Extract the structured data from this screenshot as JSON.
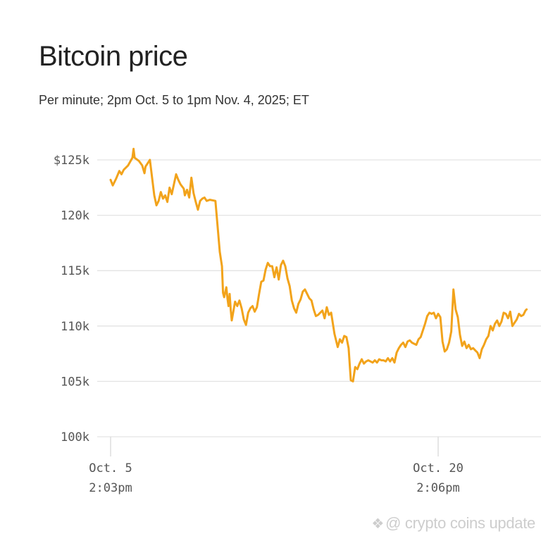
{
  "chart_data": {
    "type": "line",
    "title": "Bitcoin price",
    "subtitle": "Per minute; 2pm Oct. 5 to 1pm Nov. 4, 2025; ET",
    "ylim": [
      100000,
      125000
    ],
    "y_ticks": [
      {
        "value": 125000,
        "label": "$125k"
      },
      {
        "value": 120000,
        "label": "120k"
      },
      {
        "value": 115000,
        "label": "115k"
      },
      {
        "value": 110000,
        "label": "110k"
      },
      {
        "value": 105000,
        "label": "105k"
      },
      {
        "value": 100000,
        "label": "100k"
      }
    ],
    "x_ticks": [
      {
        "day": 0,
        "line1": "Oct. 5",
        "line2": "2:03pm"
      },
      {
        "day": 15,
        "line1": "Oct. 20",
        "line2": "2:06pm"
      }
    ],
    "x_unit": "days since Oct. 5 2:03pm ET",
    "series": [
      {
        "name": "Bitcoin price (USD)",
        "color": "#f2a31b",
        "points": [
          [
            0.0,
            123200
          ],
          [
            0.1,
            122700
          ],
          [
            0.25,
            123300
          ],
          [
            0.4,
            124000
          ],
          [
            0.5,
            123700
          ],
          [
            0.6,
            124100
          ],
          [
            0.8,
            124500
          ],
          [
            1.0,
            125200
          ],
          [
            1.05,
            126000
          ],
          [
            1.1,
            125200
          ],
          [
            1.3,
            124900
          ],
          [
            1.45,
            124500
          ],
          [
            1.55,
            123800
          ],
          [
            1.6,
            124400
          ],
          [
            1.8,
            125000
          ],
          [
            1.9,
            123400
          ],
          [
            2.0,
            121800
          ],
          [
            2.1,
            120900
          ],
          [
            2.2,
            121300
          ],
          [
            2.3,
            122100
          ],
          [
            2.4,
            121500
          ],
          [
            2.5,
            121800
          ],
          [
            2.6,
            121200
          ],
          [
            2.7,
            122500
          ],
          [
            2.8,
            121900
          ],
          [
            3.0,
            123700
          ],
          [
            3.1,
            123200
          ],
          [
            3.2,
            122800
          ],
          [
            3.35,
            122400
          ],
          [
            3.4,
            121800
          ],
          [
            3.5,
            122300
          ],
          [
            3.6,
            121600
          ],
          [
            3.7,
            123400
          ],
          [
            3.8,
            122000
          ],
          [
            3.9,
            121200
          ],
          [
            4.0,
            120500
          ],
          [
            4.1,
            121300
          ],
          [
            4.2,
            121500
          ],
          [
            4.3,
            121600
          ],
          [
            4.4,
            121300
          ],
          [
            4.55,
            121400
          ],
          [
            4.8,
            121300
          ],
          [
            4.9,
            119000
          ],
          [
            5.0,
            116700
          ],
          [
            5.1,
            115400
          ],
          [
            5.15,
            113000
          ],
          [
            5.2,
            112600
          ],
          [
            5.3,
            113500
          ],
          [
            5.35,
            112500
          ],
          [
            5.4,
            111800
          ],
          [
            5.45,
            112900
          ],
          [
            5.5,
            111500
          ],
          [
            5.55,
            110500
          ],
          [
            5.7,
            112200
          ],
          [
            5.8,
            111800
          ],
          [
            5.9,
            112300
          ],
          [
            6.0,
            111600
          ],
          [
            6.1,
            110600
          ],
          [
            6.2,
            110100
          ],
          [
            6.3,
            111200
          ],
          [
            6.4,
            111600
          ],
          [
            6.5,
            111800
          ],
          [
            6.6,
            111300
          ],
          [
            6.7,
            111700
          ],
          [
            6.8,
            112900
          ],
          [
            6.9,
            114000
          ],
          [
            7.0,
            114100
          ],
          [
            7.1,
            115100
          ],
          [
            7.2,
            115700
          ],
          [
            7.3,
            115400
          ],
          [
            7.4,
            115400
          ],
          [
            7.5,
            114400
          ],
          [
            7.6,
            115300
          ],
          [
            7.7,
            114200
          ],
          [
            7.8,
            115500
          ],
          [
            7.9,
            115900
          ],
          [
            8.0,
            115400
          ],
          [
            8.1,
            114300
          ],
          [
            8.2,
            113600
          ],
          [
            8.3,
            112300
          ],
          [
            8.4,
            111600
          ],
          [
            8.5,
            111200
          ],
          [
            8.6,
            112000
          ],
          [
            8.7,
            112400
          ],
          [
            8.8,
            113100
          ],
          [
            8.9,
            113300
          ],
          [
            9.0,
            112900
          ],
          [
            9.1,
            112500
          ],
          [
            9.2,
            112300
          ],
          [
            9.3,
            111500
          ],
          [
            9.4,
            110900
          ],
          [
            9.5,
            111000
          ],
          [
            9.6,
            111200
          ],
          [
            9.7,
            111400
          ],
          [
            9.8,
            110700
          ],
          [
            9.9,
            111700
          ],
          [
            10.0,
            111000
          ],
          [
            10.1,
            111200
          ],
          [
            10.25,
            109300
          ],
          [
            10.4,
            108100
          ],
          [
            10.5,
            108800
          ],
          [
            10.6,
            108500
          ],
          [
            10.7,
            109100
          ],
          [
            10.8,
            109000
          ],
          [
            10.9,
            108000
          ],
          [
            11.0,
            105100
          ],
          [
            11.1,
            105000
          ],
          [
            11.2,
            106300
          ],
          [
            11.3,
            106100
          ],
          [
            11.4,
            106600
          ],
          [
            11.5,
            107000
          ],
          [
            11.6,
            106600
          ],
          [
            11.7,
            106800
          ],
          [
            11.8,
            106900
          ],
          [
            11.9,
            106800
          ],
          [
            12.0,
            106700
          ],
          [
            12.1,
            106900
          ],
          [
            12.2,
            106700
          ],
          [
            12.3,
            107000
          ],
          [
            12.4,
            106900
          ],
          [
            12.5,
            106900
          ],
          [
            12.6,
            106800
          ],
          [
            12.7,
            107100
          ],
          [
            12.8,
            106800
          ],
          [
            12.9,
            107100
          ],
          [
            13.0,
            106700
          ],
          [
            13.1,
            107600
          ],
          [
            13.2,
            108000
          ],
          [
            13.3,
            108300
          ],
          [
            13.4,
            108500
          ],
          [
            13.5,
            108100
          ],
          [
            13.6,
            108600
          ],
          [
            13.7,
            108700
          ],
          [
            13.8,
            108500
          ],
          [
            13.9,
            108400
          ],
          [
            14.0,
            108300
          ],
          [
            14.1,
            108800
          ],
          [
            14.2,
            109000
          ],
          [
            14.3,
            109600
          ],
          [
            14.4,
            110200
          ],
          [
            14.5,
            110900
          ],
          [
            14.6,
            111200
          ],
          [
            14.7,
            111100
          ],
          [
            14.8,
            111200
          ],
          [
            14.9,
            110700
          ],
          [
            15.0,
            111100
          ],
          [
            15.1,
            110800
          ],
          [
            15.2,
            108600
          ],
          [
            15.3,
            107700
          ],
          [
            15.4,
            107900
          ],
          [
            15.5,
            108500
          ],
          [
            15.6,
            109500
          ],
          [
            15.7,
            113300
          ],
          [
            15.8,
            111500
          ],
          [
            15.9,
            110800
          ],
          [
            16.0,
            109200
          ],
          [
            16.1,
            108200
          ],
          [
            16.2,
            108600
          ],
          [
            16.3,
            108000
          ],
          [
            16.4,
            108300
          ],
          [
            16.5,
            107900
          ],
          [
            16.6,
            108000
          ],
          [
            16.7,
            107800
          ],
          [
            16.8,
            107600
          ],
          [
            16.9,
            107100
          ],
          [
            17.0,
            107900
          ],
          [
            17.1,
            108300
          ],
          [
            17.2,
            108800
          ],
          [
            17.3,
            109100
          ],
          [
            17.4,
            110000
          ],
          [
            17.5,
            109600
          ],
          [
            17.6,
            110200
          ],
          [
            17.7,
            110500
          ],
          [
            17.8,
            110000
          ],
          [
            17.9,
            110400
          ],
          [
            18.0,
            111200
          ],
          [
            18.1,
            111100
          ],
          [
            18.2,
            110700
          ],
          [
            18.3,
            111300
          ],
          [
            18.4,
            110000
          ],
          [
            18.5,
            110300
          ],
          [
            18.6,
            110600
          ],
          [
            18.7,
            111100
          ],
          [
            18.8,
            110900
          ],
          [
            18.9,
            111000
          ],
          [
            19.0,
            111400
          ],
          [
            19.05,
            111500
          ]
        ]
      }
    ]
  },
  "watermark": {
    "text": "@ crypto coins update"
  }
}
